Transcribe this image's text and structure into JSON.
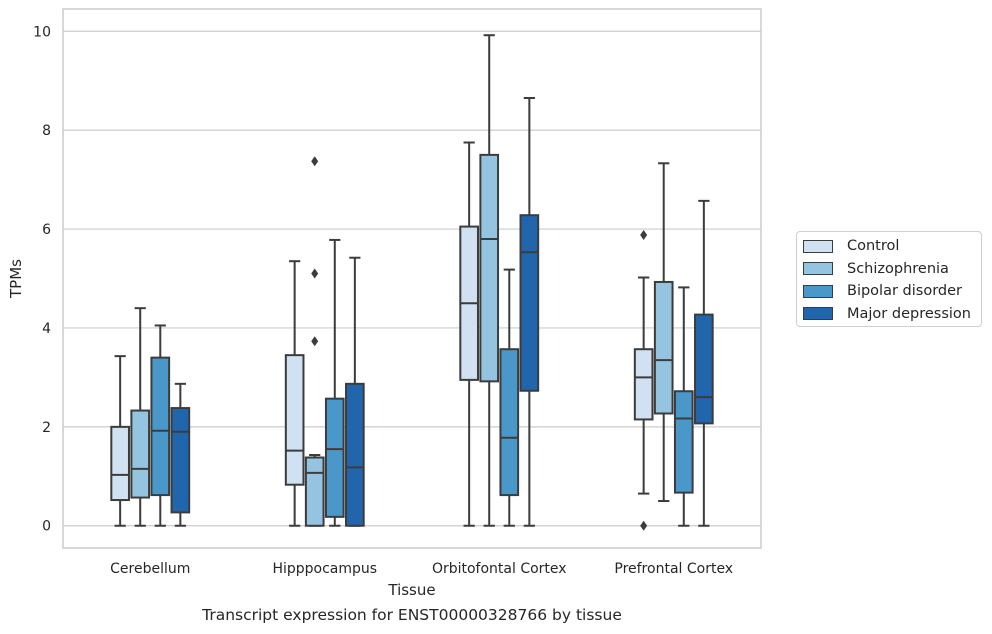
{
  "chart_data": {
    "type": "boxplot",
    "xlabel": "Tissue",
    "ylabel": "TPMs",
    "caption": "Transcript expression for ENST00000328766 by tissue",
    "ylim": [
      -0.45,
      10.45
    ],
    "yticks": [
      0,
      2,
      4,
      6,
      8,
      10
    ],
    "grid": true,
    "legend_placement": "outside-right",
    "categories": [
      "Cerebellum",
      "Hipppocampus",
      "Orbitofontal Cortex",
      "Prefrontal Cortex"
    ],
    "series": [
      {
        "name": "Control",
        "color": "#d0e1f2",
        "boxes": [
          {
            "min": 0.0,
            "q1": 0.52,
            "median": 1.03,
            "q3": 2.0,
            "max": 3.43,
            "outliers": []
          },
          {
            "min": 0.0,
            "q1": 0.83,
            "median": 1.52,
            "q3": 3.45,
            "max": 5.35,
            "outliers": []
          },
          {
            "min": 0.0,
            "q1": 2.95,
            "median": 4.5,
            "q3": 6.05,
            "max": 7.75,
            "outliers": []
          },
          {
            "min": 0.65,
            "q1": 2.15,
            "median": 3.0,
            "q3": 3.57,
            "max": 5.02,
            "outliers": [
              5.88,
              0.0
            ]
          }
        ]
      },
      {
        "name": "Schizophrenia",
        "color": "#94c4df",
        "boxes": [
          {
            "min": 0.0,
            "q1": 0.57,
            "median": 1.15,
            "q3": 2.33,
            "max": 4.4,
            "outliers": []
          },
          {
            "min": 0.0,
            "q1": 0.0,
            "median": 1.07,
            "q3": 1.38,
            "max": 1.43,
            "outliers": [
              7.37,
              5.1,
              3.73
            ]
          },
          {
            "min": 0.0,
            "q1": 2.92,
            "median": 5.8,
            "q3": 7.5,
            "max": 9.92,
            "outliers": []
          },
          {
            "min": 0.5,
            "q1": 2.27,
            "median": 3.35,
            "q3": 4.93,
            "max": 7.33,
            "outliers": []
          }
        ]
      },
      {
        "name": "Bipolar disorder",
        "color": "#4a98c9",
        "boxes": [
          {
            "min": 0.0,
            "q1": 0.62,
            "median": 1.92,
            "q3": 3.4,
            "max": 4.05,
            "outliers": []
          },
          {
            "min": 0.0,
            "q1": 0.18,
            "median": 1.55,
            "q3": 2.57,
            "max": 5.78,
            "outliers": []
          },
          {
            "min": 0.0,
            "q1": 0.62,
            "median": 1.78,
            "q3": 3.57,
            "max": 5.18,
            "outliers": []
          },
          {
            "min": 0.0,
            "q1": 0.67,
            "median": 2.17,
            "q3": 2.72,
            "max": 4.82,
            "outliers": []
          }
        ]
      },
      {
        "name": "Major depression",
        "color": "#2166ac",
        "boxes": [
          {
            "min": 0.0,
            "q1": 0.27,
            "median": 1.9,
            "q3": 2.38,
            "max": 2.87,
            "outliers": []
          },
          {
            "min": 0.0,
            "q1": 0.0,
            "median": 1.18,
            "q3": 2.87,
            "max": 5.42,
            "outliers": []
          },
          {
            "min": 0.0,
            "q1": 2.73,
            "median": 5.53,
            "q3": 6.28,
            "max": 8.65,
            "outliers": []
          },
          {
            "min": 0.0,
            "q1": 2.07,
            "median": 2.6,
            "q3": 4.27,
            "max": 6.57,
            "outliers": []
          }
        ]
      }
    ]
  }
}
